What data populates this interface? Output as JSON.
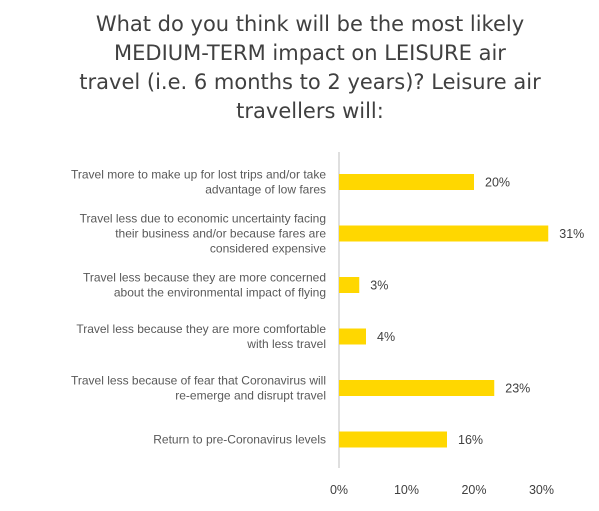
{
  "chart_data": {
    "type": "bar",
    "orientation": "horizontal",
    "title": "What do you think will be the most likely\nMEDIUM-TERM impact on LEISURE air\ntravel (i.e. 6 months to 2 years)? Leisure air\ntravellers will:",
    "categories": [
      [
        "Travel more to make up for lost trips and/or take",
        "advantage of low fares"
      ],
      [
        "Travel less due to economic uncertainty facing",
        "their business and/or because fares are",
        "considered expensive"
      ],
      [
        "Travel less because they are more concerned",
        "about the environmental impact of flying"
      ],
      [
        "Travel less because they are more comfortable",
        "with less travel"
      ],
      [
        "Travel less because of fear that Coronavirus will",
        "re-emerge and disrupt travel"
      ],
      [
        "Return to pre-Coronavirus levels"
      ]
    ],
    "values": [
      20,
      31,
      3,
      4,
      23,
      16
    ],
    "value_labels": [
      "20%",
      "31%",
      "3%",
      "4%",
      "23%",
      "16%"
    ],
    "xticks": [
      "0%",
      "10%",
      "20%",
      "30%"
    ],
    "xlim": [
      0,
      40
    ],
    "bar_color": "#FFD700",
    "grid": false,
    "legend": "none"
  }
}
